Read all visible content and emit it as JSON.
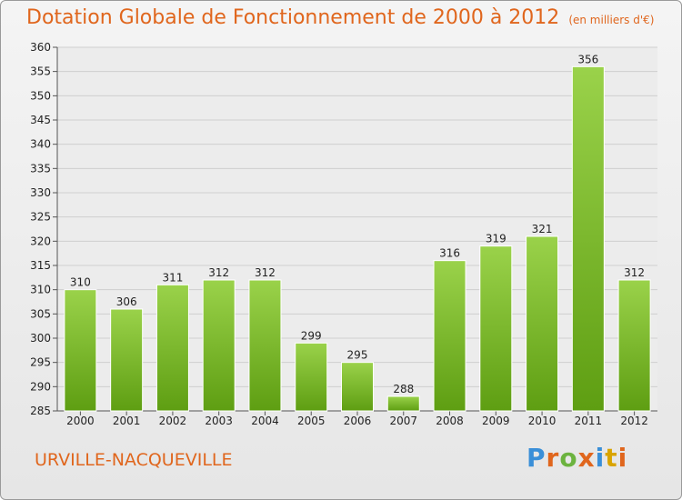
{
  "chart_data": {
    "type": "bar",
    "title": "Dotation Globale de Fonctionnement de 2000 à 2012",
    "subtitle": "(en milliers d'€)",
    "categories": [
      "2000",
      "2001",
      "2002",
      "2003",
      "2004",
      "2005",
      "2006",
      "2007",
      "2008",
      "2009",
      "2010",
      "2011",
      "2012"
    ],
    "values": [
      310,
      306,
      311,
      312,
      312,
      299,
      295,
      288,
      316,
      319,
      321,
      356,
      312
    ],
    "ylim": [
      285,
      360
    ],
    "yticks": [
      285,
      290,
      295,
      300,
      305,
      310,
      315,
      320,
      325,
      330,
      335,
      340,
      345,
      350,
      355,
      360
    ],
    "grid": true,
    "bar_color": "#7cbd2a",
    "bar_color_dark": "#5e9e12"
  },
  "footer": {
    "commune": "URVILLE-NACQUEVILLE",
    "logo_letters": [
      "P",
      "r",
      "o",
      "x",
      "i",
      "t",
      "i"
    ],
    "logo_colors": [
      "#3a8fd8",
      "#e0661d",
      "#6cb33f",
      "#e0661d",
      "#3a8fd8",
      "#d9a400",
      "#e0661d"
    ]
  }
}
